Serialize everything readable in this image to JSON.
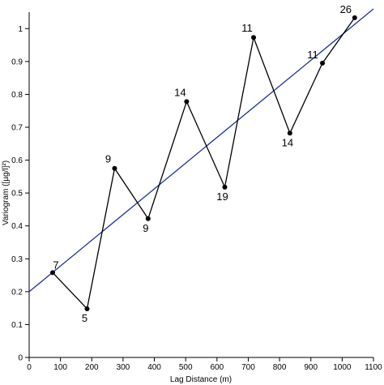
{
  "chart_data": {
    "type": "line",
    "xlabel": "Lag Distance (m)",
    "ylabel": "Variogram ([µg/l]²)",
    "xlim": [
      0,
      1100
    ],
    "ylim": [
      0,
      1.05
    ],
    "xticks": [
      0,
      100,
      200,
      300,
      400,
      500,
      600,
      700,
      800,
      900,
      1000,
      1100
    ],
    "yticks": [
      0,
      0.1,
      0.2,
      0.3,
      0.4,
      0.5,
      0.6,
      0.7,
      0.8,
      0.9,
      1
    ],
    "ytick_labels": [
      "0",
      "0.1",
      "0.2",
      "0.3",
      "0.4",
      "0.5",
      "0.6",
      "0.7",
      "0.8",
      "0.9",
      "1"
    ],
    "grid": false,
    "series": [
      {
        "color": "#000000",
        "x": [
          75,
          185,
          273,
          380,
          503,
          625,
          717,
          833,
          937,
          1040
        ],
        "y": [
          0.258,
          0.148,
          0.575,
          0.422,
          0.778,
          0.518,
          0.973,
          0.682,
          0.895,
          1.033
        ],
        "point_labels": [
          "7",
          "5",
          "9",
          "9",
          "14",
          "19",
          "11",
          "14",
          "11",
          "26"
        ]
      },
      {
        "type": "line",
        "color": "#1f2f9a",
        "x": [
          0,
          1100
        ],
        "y": [
          0.2,
          1.06
        ]
      }
    ]
  }
}
